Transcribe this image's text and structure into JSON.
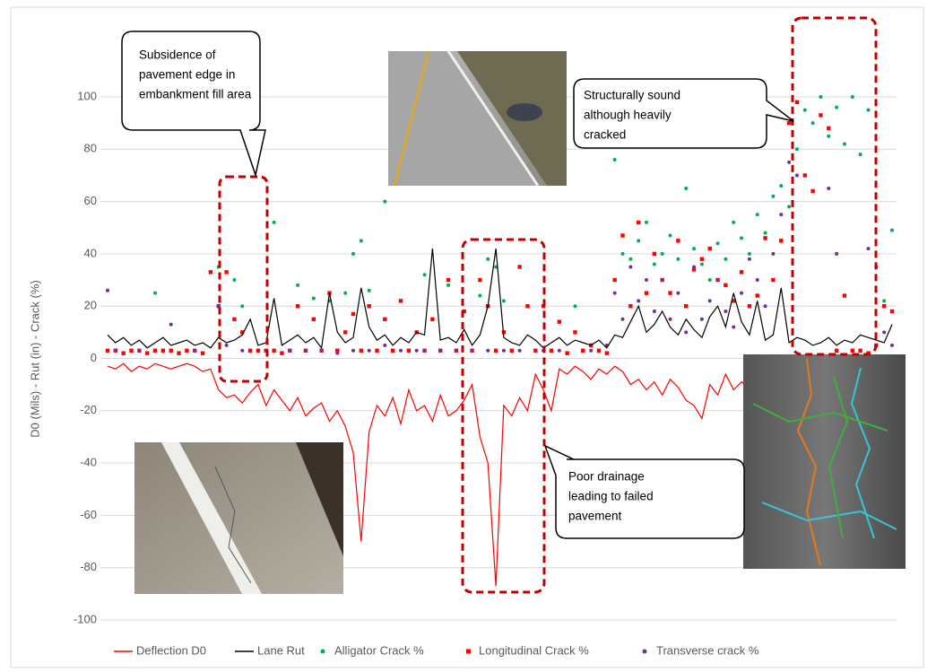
{
  "chart_data": {
    "type": "line",
    "y_label": "D0 (Mils) - Rut (in) - Crack (%)",
    "ylim": [
      -100,
      100
    ],
    "yticks": [
      -100,
      -80,
      -60,
      -40,
      -20,
      0,
      20,
      40,
      60,
      80,
      100
    ],
    "grid": true,
    "series": [
      {
        "name": "Deflection D0",
        "color": "#ff0000",
        "style": "line",
        "values": [
          -3,
          -4,
          -2,
          -5,
          -3,
          -4,
          -2,
          -3,
          -4,
          -3,
          -2,
          -3,
          -5,
          -4,
          -12,
          -15,
          -14,
          -17,
          -13,
          -10,
          -18,
          -12,
          -16,
          -20,
          -15,
          -22,
          -19,
          -17,
          -24,
          -20,
          -26,
          -36,
          -70,
          -28,
          -18,
          -22,
          -15,
          -25,
          -12,
          -20,
          -18,
          -24,
          -14,
          -22,
          -20,
          -16,
          -10,
          -30,
          -40,
          -87,
          -18,
          -22,
          -15,
          -20,
          -6,
          -12,
          -20,
          -4,
          -6,
          -3,
          -5,
          -8,
          -4,
          -6,
          -3,
          -5,
          -10,
          -8,
          -12,
          -9,
          -14,
          -8,
          -11,
          -16,
          -18,
          -23,
          -10,
          -14,
          -6,
          -12,
          -9,
          -11,
          -8,
          -10,
          -7,
          -12,
          -9,
          -10,
          -8,
          -11,
          -9,
          -7,
          -10,
          -8,
          -6,
          -9,
          -7,
          -8,
          -6,
          -8
        ]
      },
      {
        "name": "Lane Rut",
        "color": "#000000",
        "style": "line",
        "values": [
          9,
          6,
          8,
          5,
          7,
          4,
          6,
          8,
          5,
          6,
          7,
          5,
          6,
          4,
          8,
          6,
          7,
          9,
          15,
          5,
          6,
          23,
          5,
          7,
          9,
          6,
          8,
          4,
          25,
          10,
          6,
          8,
          27,
          12,
          7,
          9,
          5,
          8,
          6,
          10,
          9,
          42,
          7,
          8,
          6,
          11,
          5,
          9,
          20,
          42,
          8,
          6,
          5,
          9,
          7,
          4,
          6,
          8,
          5,
          7,
          6,
          5,
          7,
          4,
          9,
          8,
          14,
          20,
          10,
          13,
          18,
          12,
          9,
          15,
          11,
          8,
          16,
          20,
          12,
          25,
          14,
          9,
          22,
          7,
          9,
          27,
          6,
          8,
          7,
          5,
          6,
          8,
          5,
          7,
          6,
          9,
          8,
          7,
          6,
          13
        ]
      },
      {
        "name": "Alligator Crack %",
        "color": "#00b050",
        "style": "circle",
        "values": [
          null,
          null,
          null,
          null,
          null,
          null,
          25,
          null,
          null,
          null,
          null,
          null,
          null,
          null,
          35,
          33,
          30,
          20,
          null,
          null,
          null,
          52,
          null,
          null,
          28,
          null,
          23,
          null,
          22,
          null,
          25,
          40,
          45,
          26,
          null,
          60,
          null,
          null,
          null,
          null,
          32,
          null,
          null,
          28,
          null,
          null,
          null,
          24,
          38,
          35,
          22,
          null,
          null,
          null,
          null,
          null,
          null,
          null,
          null,
          20,
          null,
          null,
          null,
          null,
          76,
          40,
          38,
          45,
          52,
          36,
          40,
          47,
          38,
          65,
          42,
          36,
          30,
          44,
          38,
          52,
          46,
          40,
          55,
          48,
          62,
          66,
          58,
          80,
          95,
          90,
          100,
          85,
          96,
          82,
          100,
          78,
          95,
          null,
          22,
          49
        ]
      },
      {
        "name": "Longitudinal Crack %",
        "color": "#ff0000",
        "style": "square",
        "values": [
          3,
          3,
          2,
          3,
          3,
          2,
          3,
          3,
          3,
          2,
          3,
          3,
          2,
          33,
          20,
          33,
          15,
          10,
          3,
          3,
          3,
          3,
          2,
          3,
          20,
          3,
          15,
          3,
          25,
          3,
          10,
          17,
          3,
          20,
          3,
          15,
          3,
          22,
          3,
          10,
          3,
          15,
          3,
          30,
          3,
          18,
          3,
          30,
          20,
          3,
          10,
          3,
          35,
          20,
          3,
          20,
          3,
          14,
          2,
          10,
          3,
          5,
          3,
          2,
          30,
          47,
          20,
          52,
          25,
          40,
          30,
          25,
          45,
          20,
          34,
          38,
          42,
          30,
          28,
          22,
          33,
          20,
          24,
          46,
          30,
          45,
          90,
          98,
          70,
          64,
          93,
          88,
          3,
          24,
          3,
          3,
          2,
          5,
          20,
          18
        ]
      },
      {
        "name": "Transverse crack %",
        "color": "#7030a0",
        "style": "circle",
        "values": [
          26,
          3,
          null,
          null,
          3,
          null,
          null,
          null,
          13,
          null,
          null,
          3,
          null,
          null,
          20,
          5,
          null,
          3,
          null,
          null,
          3,
          null,
          null,
          3,
          null,
          3,
          null,
          3,
          null,
          2,
          null,
          3,
          null,
          3,
          null,
          5,
          null,
          3,
          null,
          3,
          3,
          null,
          3,
          null,
          3,
          null,
          3,
          null,
          3,
          null,
          3,
          null,
          3,
          null,
          null,
          3,
          null,
          3,
          null,
          null,
          null,
          3,
          null,
          5,
          25,
          15,
          35,
          22,
          30,
          18,
          30,
          15,
          25,
          10,
          35,
          15,
          22,
          30,
          18,
          12,
          25,
          38,
          30,
          20,
          40,
          55,
          75,
          70,
          null,
          null,
          null,
          65,
          40,
          null,
          null,
          null,
          42,
          35,
          10,
          5
        ]
      }
    ],
    "annotations": [
      {
        "lines": [
          "Subsidence of",
          "pavement edge in",
          "embankment fill area"
        ]
      },
      {
        "lines": [
          "Structurally sound",
          "although heavily",
          "cracked"
        ]
      },
      {
        "lines": [
          "Poor drainage",
          "leading to failed",
          "pavement"
        ]
      }
    ]
  }
}
